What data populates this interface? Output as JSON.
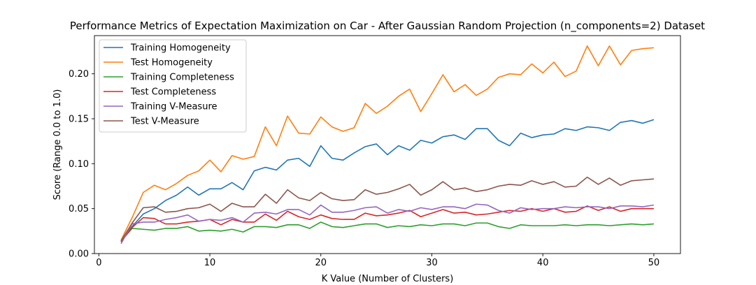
{
  "chart_data": {
    "type": "line",
    "title": "Performance Metrics of Expectation Maximization on Car - After Gaussian Random Projection (n_components=2) Dataset",
    "xlabel": "K Value (Number of Clusters)",
    "ylabel": "Score (Range 0.0 to 1.0)",
    "xlim": [
      -0.4,
      52.4
    ],
    "ylim": [
      0.0,
      0.2425
    ],
    "xticks": [
      0,
      10,
      20,
      30,
      40,
      50
    ],
    "xtick_labels": [
      "0",
      "10",
      "20",
      "30",
      "40",
      "50"
    ],
    "yticks": [
      0.0,
      0.05,
      0.1,
      0.15,
      0.2
    ],
    "ytick_labels": [
      "0.00",
      "0.05",
      "0.10",
      "0.15",
      "0.20"
    ],
    "grid": false,
    "legend_position": "upper-left",
    "x": [
      2,
      3,
      4,
      5,
      6,
      7,
      8,
      9,
      10,
      11,
      12,
      13,
      14,
      15,
      16,
      17,
      18,
      19,
      20,
      21,
      22,
      23,
      24,
      25,
      26,
      27,
      28,
      29,
      30,
      31,
      32,
      33,
      34,
      35,
      36,
      37,
      38,
      39,
      40,
      41,
      42,
      43,
      44,
      45,
      46,
      47,
      48,
      49,
      50
    ],
    "series": [
      {
        "name": "Training Homogeneity",
        "color": "#1f77b4",
        "values": [
          0.013,
          0.03,
          0.044,
          0.05,
          0.059,
          0.065,
          0.074,
          0.065,
          0.072,
          0.072,
          0.079,
          0.071,
          0.092,
          0.096,
          0.093,
          0.104,
          0.106,
          0.097,
          0.12,
          0.106,
          0.104,
          0.112,
          0.119,
          0.122,
          0.11,
          0.12,
          0.115,
          0.126,
          0.123,
          0.13,
          0.132,
          0.127,
          0.139,
          0.139,
          0.126,
          0.12,
          0.134,
          0.129,
          0.132,
          0.133,
          0.139,
          0.137,
          0.141,
          0.14,
          0.137,
          0.146,
          0.148,
          0.145,
          0.149
        ]
      },
      {
        "name": "Test Homogeneity",
        "color": "#ff7f0e",
        "values": [
          0.015,
          0.04,
          0.068,
          0.076,
          0.071,
          0.078,
          0.087,
          0.092,
          0.104,
          0.091,
          0.109,
          0.105,
          0.108,
          0.141,
          0.12,
          0.153,
          0.134,
          0.133,
          0.152,
          0.141,
          0.136,
          0.14,
          0.167,
          0.156,
          0.164,
          0.175,
          0.183,
          0.158,
          0.178,
          0.199,
          0.18,
          0.188,
          0.176,
          0.183,
          0.196,
          0.2,
          0.199,
          0.211,
          0.201,
          0.213,
          0.197,
          0.203,
          0.231,
          0.209,
          0.231,
          0.21,
          0.226,
          0.228,
          0.229
        ]
      },
      {
        "name": "Training Completeness",
        "color": "#2ca02c",
        "values": [
          0.014,
          0.028,
          0.027,
          0.026,
          0.028,
          0.028,
          0.03,
          0.025,
          0.026,
          0.025,
          0.027,
          0.024,
          0.03,
          0.03,
          0.029,
          0.032,
          0.032,
          0.028,
          0.035,
          0.03,
          0.029,
          0.031,
          0.033,
          0.033,
          0.029,
          0.031,
          0.03,
          0.032,
          0.031,
          0.033,
          0.033,
          0.031,
          0.034,
          0.034,
          0.03,
          0.028,
          0.032,
          0.031,
          0.031,
          0.031,
          0.032,
          0.031,
          0.032,
          0.032,
          0.031,
          0.032,
          0.033,
          0.032,
          0.033
        ]
      },
      {
        "name": "Test Completeness",
        "color": "#d62728",
        "values": [
          0.013,
          0.029,
          0.04,
          0.039,
          0.033,
          0.033,
          0.035,
          0.036,
          0.038,
          0.032,
          0.038,
          0.035,
          0.035,
          0.044,
          0.037,
          0.047,
          0.041,
          0.038,
          0.043,
          0.039,
          0.038,
          0.038,
          0.045,
          0.042,
          0.043,
          0.045,
          0.048,
          0.041,
          0.045,
          0.049,
          0.045,
          0.046,
          0.043,
          0.044,
          0.046,
          0.048,
          0.047,
          0.05,
          0.047,
          0.05,
          0.046,
          0.047,
          0.053,
          0.048,
          0.052,
          0.047,
          0.05,
          0.05,
          0.05
        ]
      },
      {
        "name": "Training V-Measure",
        "color": "#9467bd",
        "values": [
          0.011,
          0.033,
          0.035,
          0.035,
          0.038,
          0.04,
          0.043,
          0.036,
          0.038,
          0.037,
          0.04,
          0.035,
          0.045,
          0.046,
          0.044,
          0.049,
          0.049,
          0.043,
          0.054,
          0.046,
          0.046,
          0.048,
          0.051,
          0.052,
          0.045,
          0.049,
          0.047,
          0.051,
          0.049,
          0.052,
          0.052,
          0.05,
          0.055,
          0.054,
          0.048,
          0.045,
          0.051,
          0.049,
          0.05,
          0.05,
          0.052,
          0.051,
          0.052,
          0.052,
          0.05,
          0.053,
          0.053,
          0.052,
          0.054
        ]
      },
      {
        "name": "Test V-Measure",
        "color": "#8c564b",
        "values": [
          0.014,
          0.034,
          0.051,
          0.052,
          0.046,
          0.047,
          0.05,
          0.051,
          0.055,
          0.047,
          0.056,
          0.052,
          0.052,
          0.066,
          0.056,
          0.071,
          0.062,
          0.059,
          0.068,
          0.061,
          0.059,
          0.06,
          0.071,
          0.066,
          0.068,
          0.072,
          0.077,
          0.065,
          0.071,
          0.08,
          0.071,
          0.073,
          0.069,
          0.071,
          0.075,
          0.077,
          0.076,
          0.081,
          0.077,
          0.08,
          0.074,
          0.075,
          0.085,
          0.077,
          0.084,
          0.076,
          0.081,
          0.082,
          0.083
        ]
      }
    ]
  }
}
